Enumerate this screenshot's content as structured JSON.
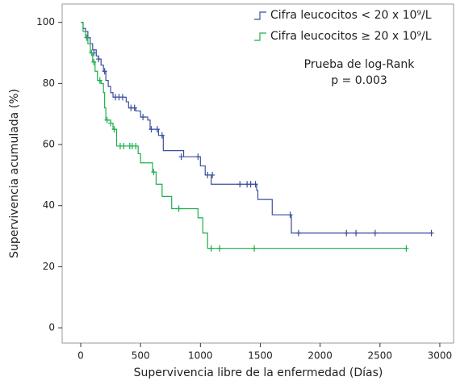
{
  "chart_data": {
    "type": "kaplan-meier",
    "x_label": "Supervivencia libre de la enfermedad (Días)",
    "y_label": "Supervivencia acumulada (%)",
    "xlim": [
      -155,
      3115
    ],
    "ylim": [
      -5,
      106
    ],
    "xticks": [
      0,
      500,
      1000,
      1500,
      2000,
      2500,
      3000
    ],
    "yticks": [
      0,
      20,
      40,
      60,
      80,
      100
    ],
    "grid": false,
    "legend": "upper right",
    "annotations": [
      "Prueba de log-Rank",
      "p = 0.003"
    ],
    "series": [
      {
        "name": "Cifra leucocitos < 20 x 10⁹/L",
        "color": "#3b4fa0",
        "x": [
          0,
          20,
          40,
          60,
          80,
          100,
          130,
          150,
          170,
          190,
          210,
          230,
          250,
          270,
          380,
          400,
          460,
          500,
          560,
          580,
          650,
          690,
          860,
          1000,
          1040,
          1090,
          1470,
          1480,
          1600,
          1760,
          2930
        ],
        "values": [
          100,
          98,
          97,
          95,
          93,
          91,
          89,
          88,
          86,
          84,
          81,
          79,
          77,
          75.5,
          74,
          72,
          71,
          69,
          68,
          65,
          63,
          58,
          56,
          53,
          50,
          47,
          45,
          42,
          37,
          31,
          31
        ],
        "censored": {
          "x": [
            60,
            110,
            150,
            200,
            290,
            320,
            350,
            420,
            450,
            520,
            590,
            640,
            680,
            840,
            980,
            1060,
            1100,
            1330,
            1390,
            1420,
            1460,
            1750,
            1820,
            2220,
            2300,
            2460,
            2930
          ],
          "values": [
            95,
            90,
            88,
            84,
            75.5,
            75.5,
            75.5,
            72,
            72,
            69,
            65,
            65,
            63,
            56,
            56,
            50,
            50,
            47,
            47,
            47,
            47,
            37,
            31,
            31,
            31,
            31,
            31
          ]
        }
      },
      {
        "name": "Cifra leucocitos ≥ 20 x 10⁹/L",
        "color": "#1fae4b",
        "x": [
          0,
          20,
          40,
          60,
          80,
          100,
          120,
          140,
          170,
          190,
          200,
          210,
          250,
          270,
          300,
          480,
          500,
          600,
          630,
          680,
          760,
          980,
          1020,
          1060,
          2720
        ],
        "values": [
          100,
          97,
          95,
          93,
          90,
          87,
          84,
          81,
          80,
          77,
          72,
          68,
          67,
          65,
          59.5,
          57,
          54,
          51,
          47,
          43,
          39,
          36,
          31,
          26,
          26
        ],
        "censored": {
          "x": [
            50,
            90,
            110,
            160,
            220,
            250,
            280,
            330,
            360,
            410,
            430,
            460,
            610,
            820,
            1090,
            1160,
            1450,
            2720
          ],
          "values": [
            95,
            90,
            87,
            81,
            68,
            67,
            65,
            59.5,
            59.5,
            59.5,
            59.5,
            59.5,
            51,
            39,
            26,
            26,
            26,
            26
          ]
        }
      }
    ]
  }
}
